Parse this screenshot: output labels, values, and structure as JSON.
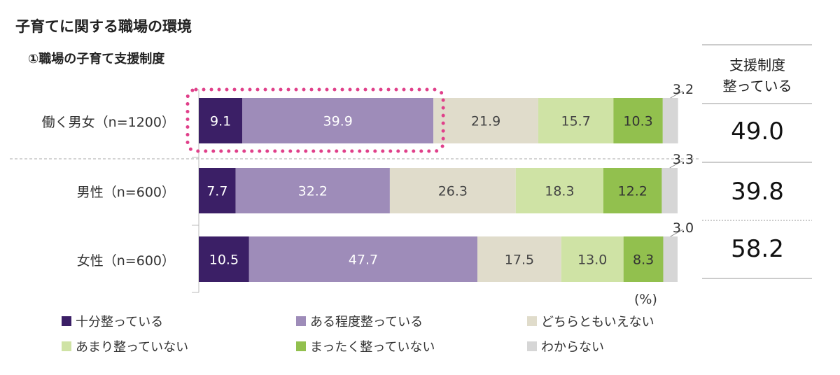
{
  "title": "子育てに関する職場の環境",
  "subtitle": "①職場の子育て支援制度",
  "unit": "(%)",
  "colors": [
    "#3b1f66",
    "#9e8cb9",
    "#e0dccb",
    "#cfe3a5",
    "#92c04e",
    "#d6d6d6"
  ],
  "side_column": {
    "header_line1": "支援制度",
    "header_line2": "整っている",
    "values": [
      "49.0",
      "39.8",
      "58.2"
    ]
  },
  "chart_data": {
    "type": "bar",
    "orientation": "horizontal",
    "stacked": true,
    "categories": [
      "働く男女（n=1200）",
      "男性（n=600）",
      "女性（n=600）"
    ],
    "series": [
      {
        "name": "十分整っている",
        "values": [
          9.1,
          7.7,
          10.5
        ]
      },
      {
        "name": "ある程度整っている",
        "values": [
          39.9,
          32.2,
          47.7
        ]
      },
      {
        "name": "どちらともいえない",
        "values": [
          21.9,
          26.3,
          17.5
        ]
      },
      {
        "name": "あまり整っていない",
        "values": [
          15.7,
          18.3,
          13.0
        ]
      },
      {
        "name": "まったく整っていない",
        "values": [
          10.3,
          12.2,
          8.3
        ]
      },
      {
        "name": "わからない",
        "values": [
          3.2,
          3.3,
          3.0
        ]
      }
    ],
    "xlim": [
      0,
      100
    ],
    "legend_position": "bottom"
  }
}
